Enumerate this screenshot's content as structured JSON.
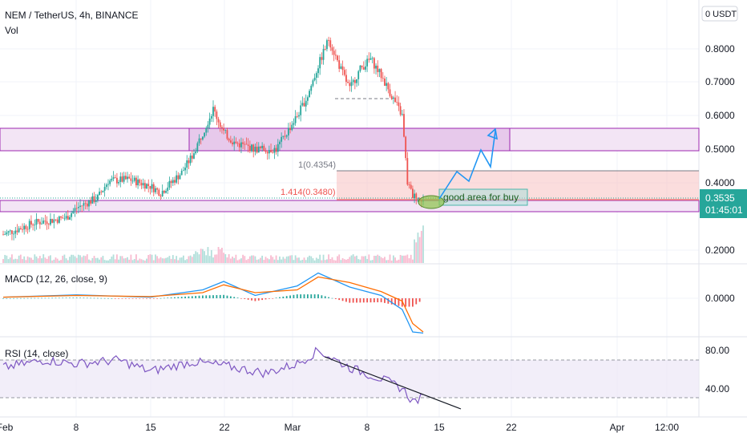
{
  "header": {
    "symbol_line": "NEM / TetherUS, 4h, BINANCE",
    "volume_label": "Vol",
    "currency_badge": "0 USDT"
  },
  "colors": {
    "up": "#26a69a",
    "down": "#ef5350",
    "zone_fill": "#e1bee7",
    "zone_border": "#9c27b0",
    "fib_fill": "#f8c6c6",
    "macd_line": "#2196f3",
    "signal_line": "#ff6d00",
    "rsi_line": "#7e57c2",
    "rsi_band": "#ede7f6",
    "projection": "#2196f3",
    "price_tag": "#26a69a"
  },
  "price_panel": {
    "price_ticks": [
      "0.8000",
      "0.7000",
      "0.6000",
      "0.5000",
      "0.4000",
      "0.2000"
    ],
    "current_price": "0.3535",
    "countdown": "01:45:01",
    "fib_1_label": "1(0.4354)",
    "fib_1414_label": "1.414(0.3480)",
    "annotation": "good area for buy"
  },
  "macd_panel": {
    "label": "MACD (12, 26, close, 9)",
    "tick": "0.0000"
  },
  "rsi_panel": {
    "label": "RSI (14, close)",
    "ticks": [
      "80.00",
      "40.00"
    ]
  },
  "time_axis": {
    "ticks": [
      "Feb",
      "8",
      "15",
      "22",
      "Mar",
      "8",
      "15",
      "22",
      "Apr",
      "12:00"
    ]
  },
  "chart_data": [
    {
      "type": "candlestick",
      "title": "NEM / TetherUS, 4h, BINANCE",
      "x_ticks": [
        "Feb",
        "8",
        "15",
        "22",
        "Mar",
        "8",
        "15",
        "22",
        "Apr",
        "12:00"
      ],
      "y_ticks": [
        0.2,
        0.4,
        0.5,
        0.6,
        0.7,
        0.8
      ],
      "ylim": [
        0.13,
        0.92
      ],
      "close_path": [
        {
          "t": "Feb 1",
          "close": 0.245
        },
        {
          "t": "Feb 4",
          "close": 0.28
        },
        {
          "t": "Feb 7",
          "close": 0.295
        },
        {
          "t": "Feb 8",
          "close": 0.325
        },
        {
          "t": "Feb 10",
          "close": 0.355
        },
        {
          "t": "Feb 11",
          "close": 0.405
        },
        {
          "t": "Feb 13",
          "close": 0.41
        },
        {
          "t": "Feb 15",
          "close": 0.39
        },
        {
          "t": "Feb 16",
          "close": 0.37
        },
        {
          "t": "Feb 18",
          "close": 0.43
        },
        {
          "t": "Feb 19",
          "close": 0.48
        },
        {
          "t": "Feb 20",
          "close": 0.55
        },
        {
          "t": "Feb 21",
          "close": 0.62
        },
        {
          "t": "Feb 22",
          "close": 0.55
        },
        {
          "t": "Feb 23",
          "close": 0.52
        },
        {
          "t": "Feb 25",
          "close": 0.5
        },
        {
          "t": "Feb 27",
          "close": 0.5
        },
        {
          "t": "Feb 28",
          "close": 0.55
        },
        {
          "t": "Mar 1",
          "close": 0.6
        },
        {
          "t": "Mar 2",
          "close": 0.66
        },
        {
          "t": "Mar 3",
          "close": 0.75
        },
        {
          "t": "Mar 4",
          "close": 0.83
        },
        {
          "t": "Mar 5",
          "close": 0.75
        },
        {
          "t": "Mar 6",
          "close": 0.68
        },
        {
          "t": "Mar 7",
          "close": 0.74
        },
        {
          "t": "Mar 8",
          "close": 0.77
        },
        {
          "t": "Mar 9",
          "close": 0.72
        },
        {
          "t": "Mar 10",
          "close": 0.66
        },
        {
          "t": "Mar 11",
          "close": 0.6
        },
        {
          "t": "Mar 11.5",
          "close": 0.4
        },
        {
          "t": "Mar 12",
          "close": 0.36
        },
        {
          "t": "Mar 13",
          "close": 0.3535
        }
      ],
      "zones": [
        {
          "name": "resistance",
          "from": 0.495,
          "to": 0.565
        },
        {
          "name": "support",
          "from": 0.315,
          "to": 0.345
        }
      ],
      "fibonacci": [
        {
          "level": "1",
          "price": 0.4354
        },
        {
          "level": "1.414",
          "price": 0.348
        }
      ],
      "trend_line": {
        "from": {
          "t": "Mar 5",
          "price": 0.653
        },
        "to": {
          "t": "Mar 10",
          "price": 0.653
        }
      },
      "projection_path": [
        {
          "t": "Mar 14",
          "price": 0.355
        },
        {
          "t": "Mar 15.5",
          "price": 0.43
        },
        {
          "t": "Mar 16.5",
          "price": 0.385
        },
        {
          "t": "Mar 18",
          "price": 0.475
        },
        {
          "t": "Mar 19.5",
          "price": 0.41
        },
        {
          "t": "Mar 21",
          "price": 0.545
        }
      ],
      "current_price": 0.3535
    },
    {
      "type": "line",
      "title": "MACD (12, 26, close, 9)",
      "y_ticks": [
        0.0
      ],
      "x": [
        "Feb 1",
        "Feb 8",
        "Feb 15",
        "Feb 20",
        "Feb 22",
        "Feb 25",
        "Mar 1",
        "Mar 3",
        "Mar 6",
        "Mar 9",
        "Mar 11",
        "Mar 12",
        "Mar 13"
      ],
      "series": [
        {
          "name": "MACD",
          "values": [
            0.002,
            0.006,
            0.002,
            0.015,
            0.03,
            0.005,
            0.022,
            0.045,
            0.02,
            0.005,
            -0.02,
            -0.06,
            -0.062
          ]
        },
        {
          "name": "Signal",
          "values": [
            0.002,
            0.005,
            0.003,
            0.01,
            0.024,
            0.01,
            0.015,
            0.038,
            0.028,
            0.012,
            -0.005,
            -0.045,
            -0.06
          ]
        }
      ]
    },
    {
      "type": "line",
      "title": "RSI (14, close)",
      "y_ticks": [
        40,
        80
      ],
      "ylim": [
        20,
        90
      ],
      "band": [
        30,
        70
      ],
      "x": [
        "Feb 1",
        "Feb 5",
        "Feb 8",
        "Feb 12",
        "Feb 15",
        "Feb 19",
        "Feb 22",
        "Feb 26",
        "Mar 1",
        "Mar 3",
        "Mar 6",
        "Mar 9",
        "Mar 11",
        "Mar 12",
        "Mar 13"
      ],
      "series": [
        {
          "name": "RSI",
          "values": [
            62,
            70,
            66,
            70,
            58,
            68,
            64,
            56,
            66,
            80,
            62,
            50,
            40,
            26,
            30
          ]
        }
      ],
      "trend_line": {
        "from": {
          "t": "Mar 4",
          "value": 75
        },
        "to": {
          "t": "Mar 17",
          "value": 23
        }
      }
    }
  ]
}
